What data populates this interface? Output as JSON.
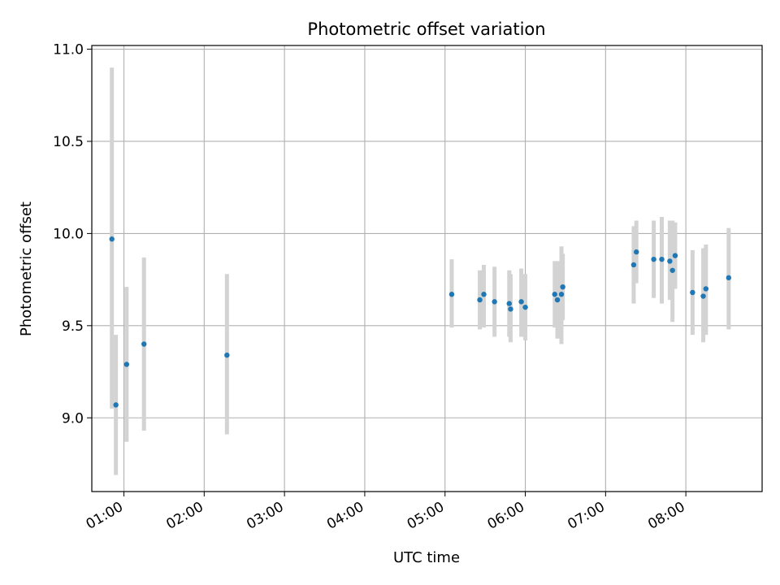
{
  "chart_data": {
    "type": "scatter",
    "title": "Photometric offset variation",
    "xlabel": "UTC time",
    "ylabel": "Photometric offset",
    "xlim": [
      "00:36",
      "08:57"
    ],
    "ylim": [
      8.6,
      11.02
    ],
    "grid": true,
    "x_ticks": [
      "01:00",
      "02:00",
      "03:00",
      "04:00",
      "05:00",
      "06:00",
      "07:00",
      "08:00"
    ],
    "y_ticks": [
      9.0,
      9.5,
      10.0,
      10.5,
      11.0
    ],
    "y_tick_labels": [
      "9.0",
      "9.5",
      "10.0",
      "10.5",
      "11.0"
    ],
    "colors": {
      "point": "#1f77b4",
      "errorbar": "#d3d3d3",
      "grid": "#b0b0b0"
    },
    "series": [
      {
        "points": [
          {
            "time": "00:51",
            "y": 9.97,
            "lo": 9.05,
            "hi": 10.9
          },
          {
            "time": "00:54",
            "y": 9.07,
            "lo": 8.69,
            "hi": 9.45
          },
          {
            "time": "01:02",
            "y": 9.29,
            "lo": 8.87,
            "hi": 9.71
          },
          {
            "time": "01:15",
            "y": 9.4,
            "lo": 8.93,
            "hi": 9.87
          },
          {
            "time": "02:17",
            "y": 9.34,
            "lo": 8.91,
            "hi": 9.78
          },
          {
            "time": "05:05",
            "y": 9.67,
            "lo": 9.49,
            "hi": 9.86
          },
          {
            "time": "05:26",
            "y": 9.64,
            "lo": 9.48,
            "hi": 9.8
          },
          {
            "time": "05:29",
            "y": 9.67,
            "lo": 9.49,
            "hi": 9.83
          },
          {
            "time": "05:37",
            "y": 9.63,
            "lo": 9.44,
            "hi": 9.82
          },
          {
            "time": "05:48",
            "y": 9.62,
            "lo": 9.44,
            "hi": 9.8
          },
          {
            "time": "05:49",
            "y": 9.59,
            "lo": 9.41,
            "hi": 9.78
          },
          {
            "time": "05:57",
            "y": 9.63,
            "lo": 9.44,
            "hi": 9.81
          },
          {
            "time": "06:00",
            "y": 9.6,
            "lo": 9.42,
            "hi": 9.78
          },
          {
            "time": "06:22",
            "y": 9.67,
            "lo": 9.49,
            "hi": 9.85
          },
          {
            "time": "06:24",
            "y": 9.64,
            "lo": 9.43,
            "hi": 9.85
          },
          {
            "time": "06:27",
            "y": 9.67,
            "lo": 9.4,
            "hi": 9.93
          },
          {
            "time": "06:28",
            "y": 9.71,
            "lo": 9.53,
            "hi": 9.89
          },
          {
            "time": "07:21",
            "y": 9.83,
            "lo": 9.62,
            "hi": 10.04
          },
          {
            "time": "07:23",
            "y": 9.9,
            "lo": 9.73,
            "hi": 10.07
          },
          {
            "time": "07:36",
            "y": 9.86,
            "lo": 9.65,
            "hi": 10.07
          },
          {
            "time": "07:42",
            "y": 9.86,
            "lo": 9.62,
            "hi": 10.09
          },
          {
            "time": "07:48",
            "y": 9.85,
            "lo": 9.64,
            "hi": 10.07
          },
          {
            "time": "07:50",
            "y": 9.8,
            "lo": 9.52,
            "hi": 10.07
          },
          {
            "time": "07:52",
            "y": 9.88,
            "lo": 9.7,
            "hi": 10.06
          },
          {
            "time": "08:05",
            "y": 9.68,
            "lo": 9.45,
            "hi": 9.91
          },
          {
            "time": "08:13",
            "y": 9.66,
            "lo": 9.41,
            "hi": 9.92
          },
          {
            "time": "08:15",
            "y": 9.7,
            "lo": 9.45,
            "hi": 9.94
          },
          {
            "time": "08:32",
            "y": 9.76,
            "lo": 9.48,
            "hi": 10.03
          }
        ]
      }
    ]
  }
}
